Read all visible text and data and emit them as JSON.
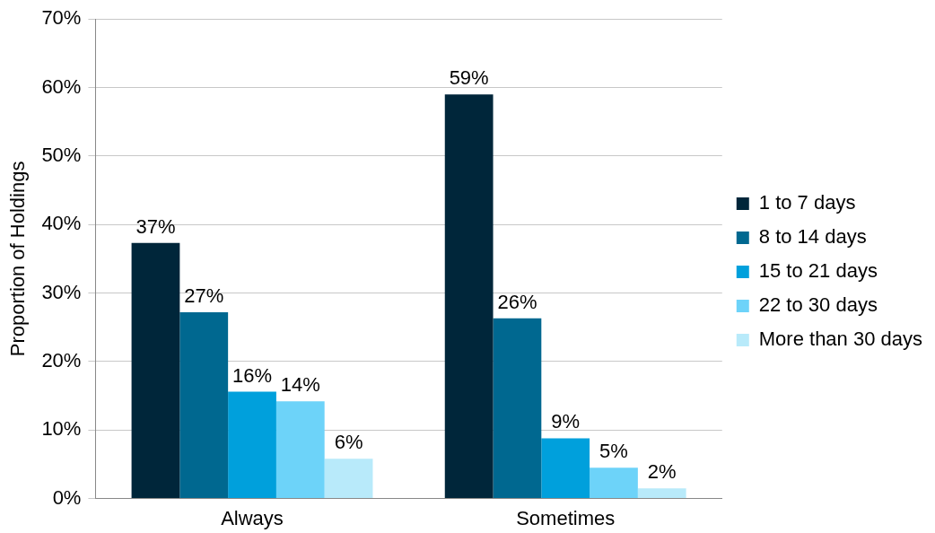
{
  "chart_data": {
    "type": "bar",
    "ylabel": "Proportion of Holdings",
    "categories": [
      "Always",
      "Sometimes"
    ],
    "series": [
      {
        "name": "1 to 7 days",
        "color": "#00263a",
        "values": [
          37.3,
          59.0
        ],
        "value_labels": [
          "37%",
          "59%"
        ]
      },
      {
        "name": "8 to 14 days",
        "color": "#006890",
        "values": [
          27.2,
          26.3
        ],
        "value_labels": [
          "27%",
          "26%"
        ]
      },
      {
        "name": "15 to 21 days",
        "color": "#00a0dc",
        "values": [
          15.6,
          8.8
        ],
        "value_labels": [
          "16%",
          "9%"
        ]
      },
      {
        "name": "22 to 30 days",
        "color": "#6dd3f9",
        "values": [
          14.2,
          4.5
        ],
        "value_labels": [
          "14%",
          "5%"
        ]
      },
      {
        "name": "More than 30 days",
        "color": "#b8eafa",
        "values": [
          5.8,
          1.5
        ],
        "value_labels": [
          "6%",
          "2%"
        ]
      }
    ],
    "ylim": [
      0,
      70
    ],
    "yticks": [
      {
        "value": 0,
        "label": "0%"
      },
      {
        "value": 10,
        "label": "10%"
      },
      {
        "value": 20,
        "label": "20%"
      },
      {
        "value": 30,
        "label": "30%"
      },
      {
        "value": 40,
        "label": "40%"
      },
      {
        "value": 50,
        "label": "50%"
      },
      {
        "value": 60,
        "label": "60%"
      },
      {
        "value": 70,
        "label": "70%"
      }
    ],
    "grid": "y",
    "legend": "right"
  }
}
